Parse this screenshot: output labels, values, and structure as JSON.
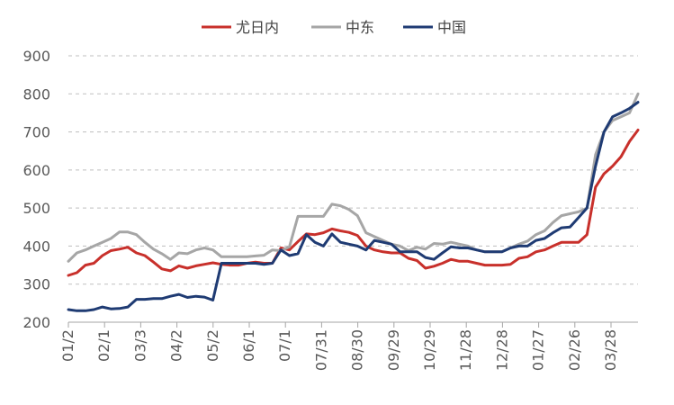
{
  "chart_data": {
    "type": "line",
    "title": "",
    "xlabel": "",
    "ylabel": "",
    "ylim": [
      200,
      900
    ],
    "yticks": [
      200,
      300,
      400,
      500,
      600,
      700,
      800,
      900
    ],
    "grid": "horizontal-dashed",
    "legend_position": "top-center",
    "x": [
      "01/02",
      "01/09",
      "01/16",
      "01/23",
      "01/30",
      "02/06",
      "02/13",
      "02/20",
      "02/27",
      "03/06",
      "03/13",
      "03/20",
      "03/27",
      "04/03",
      "04/10",
      "04/17",
      "04/24",
      "05/01",
      "05/08",
      "05/15",
      "05/22",
      "05/29",
      "06/05",
      "06/12",
      "06/19",
      "06/26",
      "07/03",
      "07/10",
      "07/17",
      "07/24",
      "07/31",
      "08/07",
      "08/14",
      "08/21",
      "08/28",
      "09/04",
      "09/11",
      "09/18",
      "09/25",
      "10/02",
      "10/09",
      "10/16",
      "10/23",
      "10/30",
      "11/06",
      "11/13",
      "11/20",
      "11/27",
      "12/04",
      "12/11",
      "12/18",
      "12/25",
      "01/01",
      "01/08",
      "01/15",
      "01/22",
      "01/29",
      "02/05",
      "02/12",
      "02/19",
      "02/26",
      "03/05",
      "03/12",
      "03/19",
      "03/26",
      "04/02",
      "04/09",
      "04/16"
    ],
    "x_tick_labels": [
      "01/2",
      "02/1",
      "03/3",
      "04/2",
      "05/2",
      "06/1",
      "07/1",
      "07/31",
      "08/30",
      "09/29",
      "10/29",
      "11/28",
      "12/28",
      "01/27",
      "02/26",
      "03/28"
    ],
    "series": [
      {
        "name": "尤日内",
        "color": "#c8302b",
        "values": [
          323,
          330,
          350,
          355,
          375,
          388,
          392,
          397,
          382,
          375,
          358,
          340,
          335,
          348,
          342,
          348,
          352,
          356,
          352,
          350,
          350,
          355,
          358,
          355,
          355,
          395,
          390,
          412,
          432,
          430,
          435,
          445,
          440,
          436,
          428,
          400,
          390,
          385,
          382,
          382,
          368,
          362,
          342,
          347,
          355,
          365,
          360,
          360,
          355,
          350,
          350,
          350,
          352,
          368,
          372,
          385,
          390,
          400,
          410,
          410,
          410,
          430,
          555,
          590,
          610,
          635,
          675,
          705
        ]
      },
      {
        "name": "中东",
        "color": "#a6a6a6",
        "values": [
          360,
          382,
          390,
          400,
          410,
          420,
          437,
          437,
          430,
          410,
          392,
          380,
          365,
          382,
          380,
          390,
          395,
          390,
          372,
          372,
          372,
          372,
          374,
          376,
          390,
          388,
          398,
          478,
          478,
          478,
          478,
          510,
          506,
          496,
          480,
          435,
          425,
          415,
          405,
          400,
          388,
          397,
          392,
          407,
          405,
          410,
          405,
          400,
          390,
          385,
          385,
          385,
          395,
          405,
          413,
          430,
          440,
          462,
          480,
          485,
          490,
          500,
          640,
          700,
          730,
          740,
          750,
          800
        ]
      },
      {
        "name": "中国",
        "color": "#1f3b73",
        "values": [
          233,
          230,
          230,
          233,
          240,
          235,
          236,
          240,
          260,
          260,
          262,
          262,
          268,
          273,
          265,
          268,
          266,
          258,
          355,
          355,
          355,
          355,
          355,
          352,
          355,
          390,
          375,
          380,
          430,
          410,
          400,
          432,
          410,
          405,
          400,
          390,
          415,
          410,
          405,
          385,
          385,
          385,
          370,
          365,
          382,
          398,
          395,
          395,
          390,
          385,
          385,
          385,
          395,
          400,
          400,
          415,
          420,
          435,
          448,
          450,
          475,
          500,
          610,
          700,
          740,
          750,
          762,
          778
        ]
      }
    ]
  }
}
